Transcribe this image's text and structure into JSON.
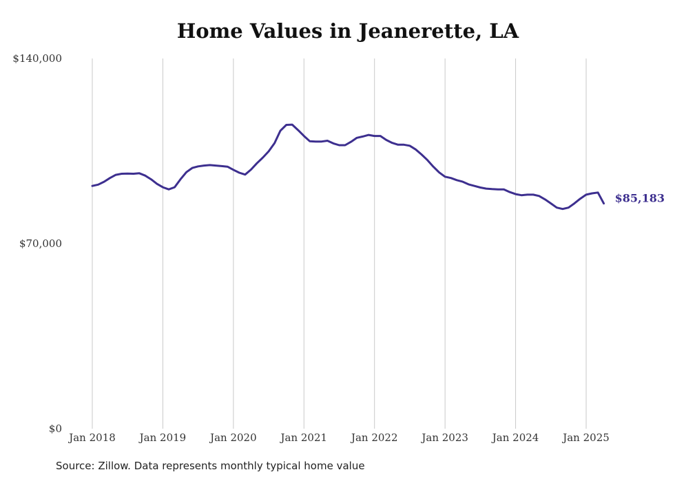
{
  "chart_data": {
    "type": "line",
    "title": "Home Values in Jeanerette, LA",
    "source": "Source: Zillow. Data represents monthly typical home value",
    "ylim": [
      0,
      140000
    ],
    "y_ticks": [
      {
        "value": 0,
        "label": "$0"
      },
      {
        "value": 70000,
        "label": "$70,000"
      },
      {
        "value": 140000,
        "label": "$140,000"
      }
    ],
    "x_ticks": [
      {
        "value": "2018-01",
        "label": "Jan 2018"
      },
      {
        "value": "2019-01",
        "label": "Jan 2019"
      },
      {
        "value": "2020-01",
        "label": "Jan 2020"
      },
      {
        "value": "2021-01",
        "label": "Jan 2021"
      },
      {
        "value": "2022-01",
        "label": "Jan 2022"
      },
      {
        "value": "2023-01",
        "label": "Jan 2023"
      },
      {
        "value": "2024-01",
        "label": "Jan 2024"
      },
      {
        "value": "2025-01",
        "label": "Jan 2025"
      }
    ],
    "x_grid": true,
    "line_color": "#3d2f8f",
    "end_label": "$85,183",
    "series": [
      {
        "x": [
          "2018-01",
          "2018-02",
          "2018-03",
          "2018-04",
          "2018-05",
          "2018-06",
          "2018-07",
          "2018-08",
          "2018-09",
          "2018-10",
          "2018-11",
          "2018-12",
          "2019-01",
          "2019-02",
          "2019-03",
          "2019-04",
          "2019-05",
          "2019-06",
          "2019-07",
          "2019-08",
          "2019-09",
          "2019-10",
          "2019-11",
          "2019-12",
          "2020-01",
          "2020-02",
          "2020-03",
          "2020-04",
          "2020-05",
          "2020-06",
          "2020-07",
          "2020-08",
          "2020-09",
          "2020-10",
          "2020-11",
          "2020-12",
          "2021-01",
          "2021-02",
          "2021-03",
          "2021-04",
          "2021-05",
          "2021-06",
          "2021-07",
          "2021-08",
          "2021-09",
          "2021-10",
          "2021-11",
          "2021-12",
          "2022-01",
          "2022-02",
          "2022-03",
          "2022-04",
          "2022-05",
          "2022-06",
          "2022-07",
          "2022-08",
          "2022-09",
          "2022-10",
          "2022-11",
          "2022-12",
          "2023-01",
          "2023-02",
          "2023-03",
          "2023-04",
          "2023-05",
          "2023-06",
          "2023-07",
          "2023-08",
          "2023-09",
          "2023-10",
          "2023-11",
          "2023-12",
          "2024-01",
          "2024-02",
          "2024-03",
          "2024-04",
          "2024-05",
          "2024-06",
          "2024-07",
          "2024-08",
          "2024-09",
          "2024-10",
          "2024-11",
          "2024-12",
          "2025-01",
          "2025-02",
          "2025-03",
          "2025-04"
        ],
        "values": [
          91800,
          92300,
          93400,
          94800,
          96000,
          96400,
          96500,
          96400,
          96600,
          95700,
          94300,
          92600,
          91300,
          90500,
          91300,
          94300,
          97000,
          98600,
          99200,
          99500,
          99700,
          99500,
          99300,
          99100,
          97900,
          96800,
          96100,
          98000,
          100400,
          102500,
          104900,
          108000,
          112700,
          114900,
          115000,
          112900,
          110700,
          108700,
          108600,
          108600,
          108900,
          107900,
          107200,
          107200,
          108500,
          110000,
          110500,
          111100,
          110700,
          110700,
          109200,
          108100,
          107400,
          107400,
          107000,
          105600,
          103700,
          101600,
          99100,
          96900,
          95300,
          94800,
          94000,
          93400,
          92400,
          91800,
          91200,
          90800,
          90600,
          90500,
          90500,
          89500,
          88700,
          88300,
          88500,
          88500,
          88000,
          86700,
          85200,
          83600,
          83100,
          83600,
          85200,
          87000,
          88500,
          89000,
          89300,
          85183
        ]
      }
    ]
  }
}
